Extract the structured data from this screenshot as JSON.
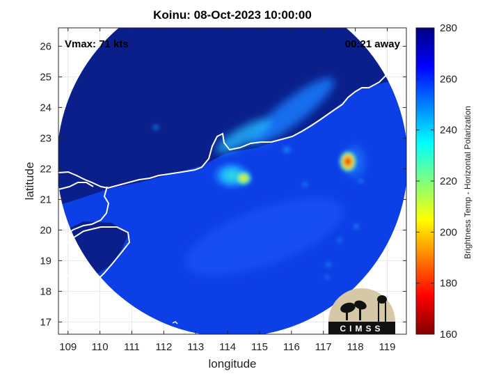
{
  "chart_data": {
    "type": "heatmap",
    "title": "Koinu: 08-Oct-2023 10:00:00",
    "xlabel": "longitude",
    "ylabel": "latitude",
    "xlim": [
      108.7,
      119.6
    ],
    "ylim": [
      16.6,
      26.6
    ],
    "xticks": [
      109,
      110,
      111,
      112,
      113,
      114,
      115,
      116,
      117,
      118,
      119
    ],
    "yticks": [
      17,
      18,
      19,
      20,
      21,
      22,
      23,
      24,
      25,
      26
    ],
    "grid": true,
    "annotations": {
      "vmax": "Vmax: 71 kts",
      "time_away": "00:21 away"
    },
    "colorbar": {
      "label": "Brightness Temp - Horizontal Polarization",
      "range": [
        160,
        280
      ],
      "ticks": [
        160,
        180,
        200,
        220,
        240,
        260,
        280
      ],
      "colormap": "jet"
    },
    "features": [
      {
        "name": "storm center",
        "lon": 114.3,
        "lat": 21.6,
        "tb": 208
      },
      {
        "name": "eyewall band",
        "lon": 114.0,
        "lat": 21.9,
        "tb": 235
      },
      {
        "name": "northern rainband",
        "lon": 115.0,
        "lat": 24.0,
        "tb": 240
      },
      {
        "name": "convective cell",
        "lon": 117.7,
        "lat": 22.2,
        "tb": 185
      },
      {
        "name": "small cell",
        "lon": 111.7,
        "lat": 23.3,
        "tb": 245
      }
    ],
    "background_tb": {
      "ocean": 262,
      "land": 275
    },
    "logo": "CIMSS"
  },
  "colors": {
    "land": "#0a1f8a",
    "ocean": "#0d3fe6",
    "coastline": "#ffffff",
    "grid": "#e6e6e6",
    "logo_bg": "#d6c7a7"
  }
}
